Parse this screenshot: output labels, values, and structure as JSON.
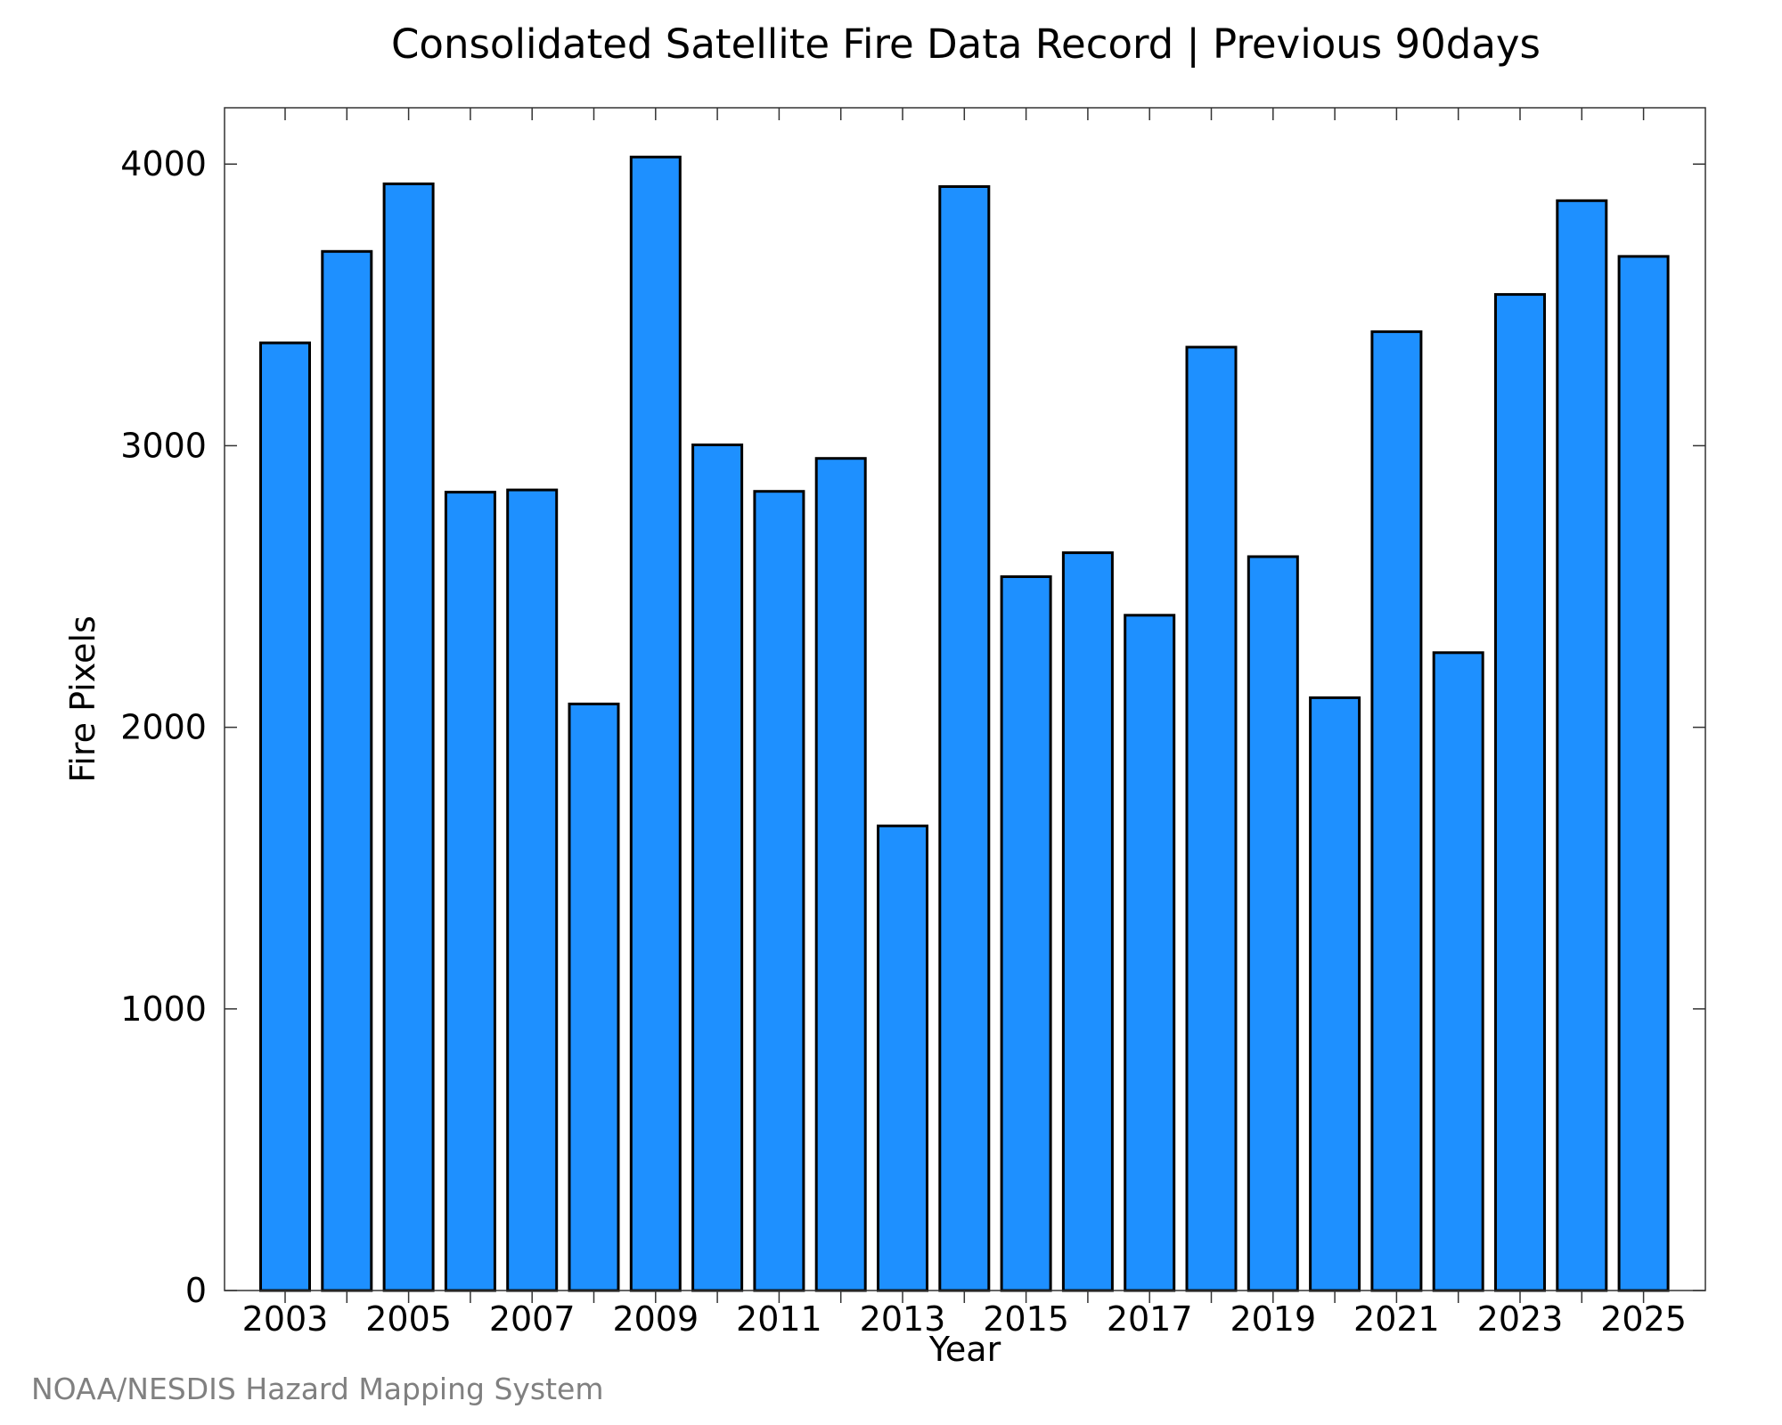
{
  "credit": "NOAA/NESDIS Hazard Mapping System",
  "colors": {
    "bar_fill": "#1e90ff",
    "bar_stroke": "#000000",
    "credit": "#808080"
  },
  "chart_data": {
    "type": "bar",
    "title": "Consolidated Satellite Fire Data Record | Previous 90days",
    "xlabel": "Year",
    "ylabel": "Fire Pixels",
    "grid": false,
    "legend": "none",
    "ylim": [
      0,
      4200
    ],
    "yticks": [
      0,
      1000,
      2000,
      3000,
      4000
    ],
    "xtick_labels": [
      "2003",
      "2005",
      "2007",
      "2009",
      "2011",
      "2013",
      "2015",
      "2017",
      "2019",
      "2021",
      "2023",
      "2025"
    ],
    "categories": [
      2003,
      2004,
      2005,
      2006,
      2007,
      2008,
      2009,
      2010,
      2011,
      2012,
      2013,
      2014,
      2015,
      2016,
      2017,
      2018,
      2019,
      2020,
      2021,
      2022,
      2023,
      2024,
      2025
    ],
    "values": [
      3365,
      3690,
      3930,
      2835,
      2843,
      2083,
      4025,
      3003,
      2838,
      2955,
      1650,
      3920,
      2535,
      2620,
      2398,
      3350,
      2606,
      2105,
      3405,
      2265,
      3537,
      3870,
      3672
    ]
  }
}
